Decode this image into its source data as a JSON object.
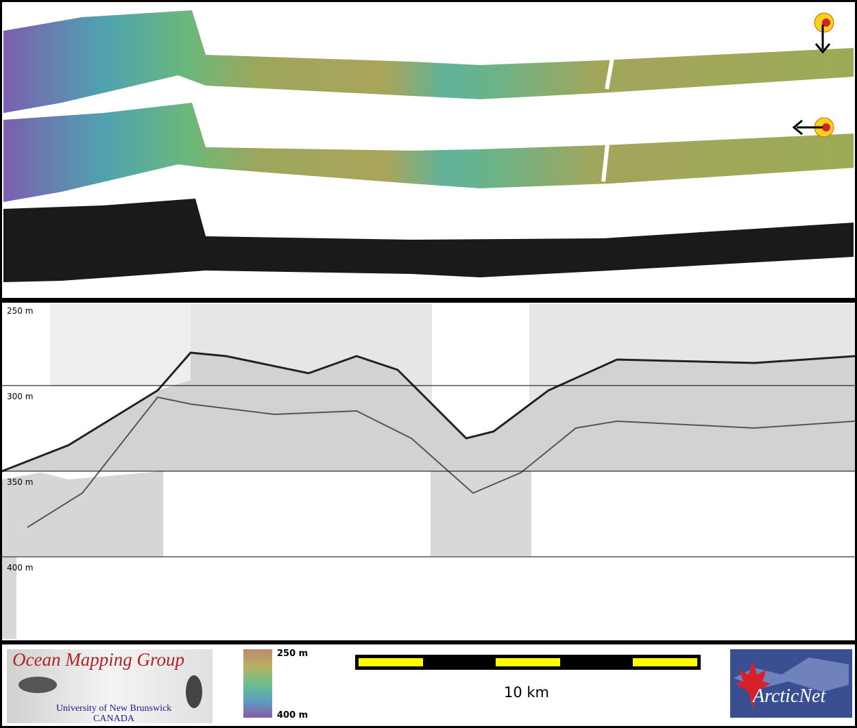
{
  "profile": {
    "depth_labels": [
      "250 m",
      "300 m",
      "350 m",
      "400 m"
    ]
  },
  "footer": {
    "logo": {
      "title": "Ocean Mapping Group",
      "university": "University of New Brunswick",
      "country": "CANADA"
    },
    "colorbar": {
      "top_label": "250 m",
      "bottom_label": "400 m"
    },
    "scale_bar": {
      "label": "10 km"
    },
    "partner_logo": {
      "text": "ArcticNet"
    }
  }
}
